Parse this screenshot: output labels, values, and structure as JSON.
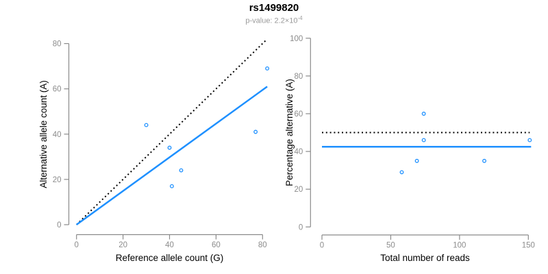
{
  "header": {
    "title": "rs1499820",
    "subtitle_base": "p-value: 2.2×10",
    "subtitle_exponent": "-4"
  },
  "colors": {
    "accent_blue": "#1E90FF",
    "dotted_black": "#000000",
    "axis_gray": "#8A8A8A",
    "tick_label_gray": "#8C8C8C",
    "axis_title_black": "#000000",
    "subtitle_gray": "#9A9A9A"
  },
  "chart_data": [
    {
      "type": "scatter",
      "name": "allele-counts-scatter",
      "title": "rs1499820",
      "xlabel": "Reference allele count (G)",
      "ylabel": "Alternative allele count (A)",
      "xlim": [
        0,
        82
      ],
      "ylim": [
        0,
        82
      ],
      "xticks": [
        0,
        20,
        40,
        60,
        80
      ],
      "yticks": [
        0,
        20,
        40,
        60,
        80
      ],
      "grid": false,
      "legend": false,
      "points": [
        [
          30,
          44
        ],
        [
          40,
          34
        ],
        [
          45,
          24
        ],
        [
          41,
          17
        ],
        [
          77,
          41
        ],
        [
          82,
          69
        ]
      ],
      "lines": [
        {
          "name": "identity-line",
          "style": "dotted",
          "color": "#000000",
          "points": [
            [
              0,
              0
            ],
            [
              82,
              82
            ]
          ]
        },
        {
          "name": "fit-line",
          "style": "solid",
          "color": "#1E90FF",
          "points": [
            [
              0,
              0
            ],
            [
              82,
              61
            ]
          ]
        }
      ]
    },
    {
      "type": "scatter",
      "name": "percentage-vs-reads-scatter",
      "title": "rs1499820",
      "xlabel": "Total number of reads",
      "ylabel": "Percentage alternative (A)",
      "xlim": [
        0,
        152
      ],
      "ylim": [
        0,
        100
      ],
      "xticks": [
        0,
        50,
        100,
        150
      ],
      "yticks": [
        0,
        20,
        40,
        60,
        80,
        100
      ],
      "grid": false,
      "legend": false,
      "points": [
        [
          74,
          60
        ],
        [
          74,
          46
        ],
        [
          69,
          35
        ],
        [
          58,
          29
        ],
        [
          118,
          35
        ],
        [
          151,
          46
        ]
      ],
      "lines": [
        {
          "name": "fifty-percent-line",
          "style": "dotted",
          "color": "#000000",
          "points": [
            [
              0,
              50
            ],
            [
              151,
              50
            ]
          ]
        },
        {
          "name": "mean-percentage-line",
          "style": "solid",
          "color": "#1E90FF",
          "points": [
            [
              0,
              42.5
            ],
            [
              152,
              42.5
            ]
          ]
        }
      ]
    }
  ]
}
